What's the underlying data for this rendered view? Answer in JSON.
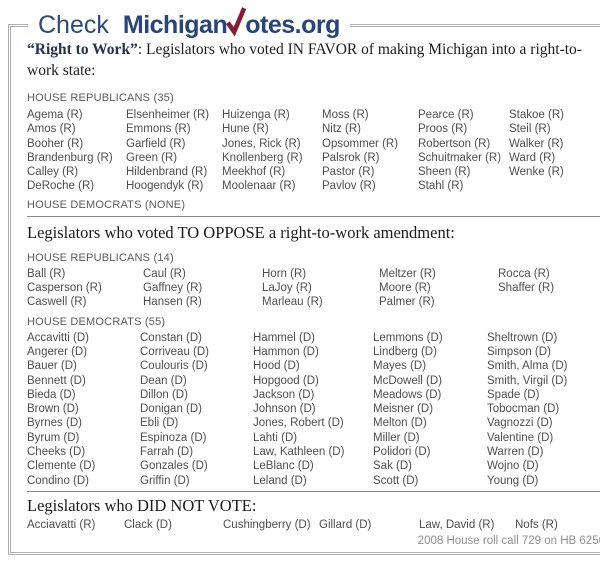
{
  "logo": {
    "check_label": "Check",
    "brand_prefix": "Michigan",
    "brand_suffix": "otes.org",
    "checkmark_color": "#821f33",
    "navy_color": "#27457c"
  },
  "favor_section": {
    "heading_bold": "“Right to Work”",
    "heading_rest": ": Legislators who voted IN FAVOR of making Michigan into a right-to-work state:",
    "republicans_header": "HOUSE REPUBLICANS (35)",
    "republicans_columns": [
      [
        "Agema (R)",
        "Amos (R)",
        "Booher (R)",
        "Brandenburg (R)",
        "Calley (R)",
        "DeRoche (R)"
      ],
      [
        "Elsenheimer (R)",
        "Emmons (R)",
        "Garfield (R)",
        "Green (R)",
        "Hildenbrand (R)",
        "Hoogendyk (R)"
      ],
      [
        "Huizenga (R)",
        "Hune (R)",
        "Jones, Rick (R)",
        "Knollenberg (R)",
        "Meekhof (R)",
        "Moolenaar (R)"
      ],
      [
        "Moss (R)",
        "Nitz (R)",
        "Opsommer (R)",
        "Palsrok (R)",
        "Pastor (R)",
        "Pavlov (R)"
      ],
      [
        "Pearce (R)",
        "Proos (R)",
        "Robertson (R)",
        "Schuitmaker (R)",
        "Sheen (R)",
        "Stahl (R)"
      ],
      [
        "Stakoe (R)",
        "Steil (R)",
        "Walker (R)",
        "Ward (R)",
        "Wenke (R)"
      ]
    ],
    "democrats_header": "HOUSE DEMOCRATS (NONE)"
  },
  "oppose_section": {
    "heading": "Legislators who voted TO OPPOSE a right-to-work amendment:",
    "republicans_header": "HOUSE REPUBLICANS (14)",
    "republicans_columns": [
      [
        "Ball (R)",
        "Casperson (R)",
        "Caswell (R)"
      ],
      [
        "Caul (R)",
        "Gaffney (R)",
        "Hansen (R)"
      ],
      [
        "Horn (R)",
        "LaJoy (R)",
        "Marleau (R)"
      ],
      [
        "Meltzer (R)",
        "Moore (R)",
        "Palmer (R)"
      ],
      [
        "Rocca (R)",
        "Shaffer (R)"
      ]
    ],
    "democrats_header": "HOUSE DEMOCRATS (55)",
    "democrats_columns": [
      [
        "Accavitti (D)",
        "Angerer (D)",
        "Bauer (D)",
        "Bennett (D)",
        "Bieda (D)",
        "Brown (D)",
        "Byrnes (D)",
        "Byrum (D)",
        "Cheeks (D)",
        "Clemente (D)",
        "Condino (D)"
      ],
      [
        "Constan (D)",
        "Corriveau (D)",
        "Coulouris (D)",
        "Dean (D)",
        "Dillon (D)",
        "Donigan (D)",
        "Ebli (D)",
        "Espinoza (D)",
        "Farrah (D)",
        "Gonzales (D)",
        "Griffin (D)"
      ],
      [
        "Hammel (D)",
        "Hammon (D)",
        "Hood (D)",
        "Hopgood (D)",
        "Jackson (D)",
        "Johnson (D)",
        "Jones, Robert (D)",
        "Lahti (D)",
        "Law, Kathleen (D)",
        "LeBlanc (D)",
        "Leland (D)"
      ],
      [
        "Lemmons (D)",
        "Lindberg (D)",
        "Mayes (D)",
        "McDowell (D)",
        "Meadows (D)",
        "Meisner (D)",
        "Melton (D)",
        "Miller (D)",
        "Polidori (D)",
        "Sak (D)",
        "Scott (D)"
      ],
      [
        "Sheltrown (D)",
        "Simpson (D)",
        "Smith, Alma (D)",
        "Smith, Virgil (D)",
        "Spade (D)",
        "Tobocman (D)",
        "Vagnozzi (D)",
        "Valentine (D)",
        "Warren (D)",
        "Wojno (D)",
        "Young (D)"
      ]
    ]
  },
  "no_vote_section": {
    "heading": "Legislators who DID NOT VOTE:",
    "names": [
      "Acciavatti (R)",
      "Clack (D)",
      "Cushingberry (D)",
      "Gillard (D)",
      "Law, David (R)",
      "Nofs (R)"
    ]
  },
  "footer": {
    "citation": "2008 House roll call 729 on HB 6256"
  }
}
